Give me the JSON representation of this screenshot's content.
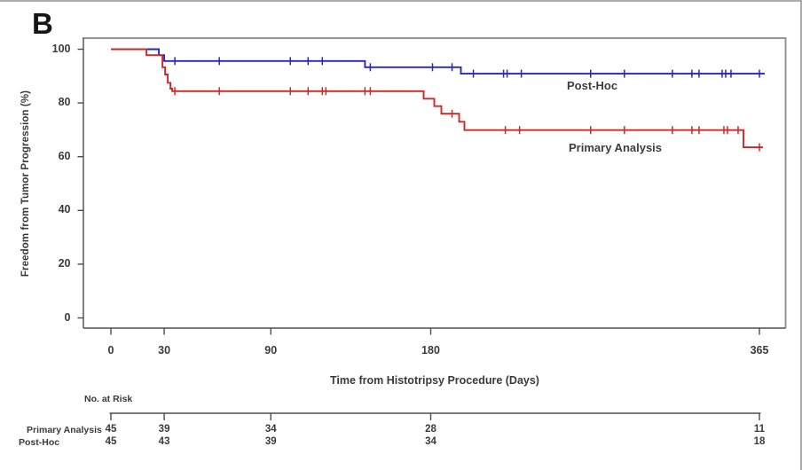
{
  "panel_label": "B",
  "colors": {
    "post_hoc_blue": "#2525cb",
    "primary_red": "#d22724",
    "axis_dark": "#4d4d4d",
    "box_gray": "#949494",
    "text_dark": "#3a3a3a"
  },
  "chart_data": {
    "type": "line",
    "subtype": "kaplan-meier-step",
    "title": "",
    "xlabel": "Time from Histotripsy Procedure (Days)",
    "ylabel": "Freedom from Tumor Progression (%)",
    "xlim": [
      0,
      365
    ],
    "ylim": [
      0,
      100
    ],
    "x_ticks": [
      0,
      30,
      90,
      180,
      365
    ],
    "y_ticks": [
      100,
      80,
      60,
      40,
      20,
      0
    ],
    "grid": false,
    "legend_position": "on-curve",
    "series": [
      {
        "name": "Post-Hoc",
        "color": "#2525cb",
        "steps": [
          [
            0,
            100
          ],
          [
            27,
            100
          ],
          [
            27,
            97.8
          ],
          [
            30,
            97.8
          ],
          [
            30,
            95.6
          ],
          [
            143,
            95.6
          ],
          [
            143,
            93.3
          ],
          [
            197,
            93.3
          ],
          [
            197,
            90.9
          ],
          [
            368,
            90.9
          ]
        ],
        "censor_days": [
          36,
          61,
          101,
          111,
          119,
          146,
          181,
          192,
          204,
          221,
          223,
          231,
          270,
          289,
          316,
          327,
          331,
          344,
          346,
          349,
          365
        ]
      },
      {
        "name": "Primary Analysis",
        "color": "#d22724",
        "steps": [
          [
            0,
            100
          ],
          [
            20,
            100
          ],
          [
            20,
            97.8
          ],
          [
            29,
            97.8
          ],
          [
            29,
            93.3
          ],
          [
            30.5,
            93.3
          ],
          [
            30.5,
            90.6
          ],
          [
            32,
            90.6
          ],
          [
            32,
            87.5
          ],
          [
            33.5,
            87.5
          ],
          [
            33.5,
            85.3
          ],
          [
            34.5,
            85.3
          ],
          [
            34.5,
            84.4
          ],
          [
            176,
            84.4
          ],
          [
            176,
            81.6
          ],
          [
            182,
            81.6
          ],
          [
            182,
            78.8
          ],
          [
            186,
            78.8
          ],
          [
            186,
            76.0
          ],
          [
            196,
            76.0
          ],
          [
            196,
            73.0
          ],
          [
            199,
            73.0
          ],
          [
            199,
            69.9
          ],
          [
            356,
            69.9
          ],
          [
            356,
            63.5
          ],
          [
            367,
            63.5
          ]
        ],
        "censor_days": [
          36,
          61,
          101,
          111,
          119,
          121,
          143,
          146,
          192,
          222,
          230,
          270,
          289,
          316,
          327,
          331,
          345,
          347,
          353,
          365
        ]
      }
    ]
  },
  "risk_table": {
    "heading": "No. at Risk",
    "time_points": [
      0,
      30,
      90,
      180,
      365
    ],
    "rows": [
      {
        "label": "Primary Analysis",
        "values": [
          "45",
          "39",
          "34",
          "28",
          "11"
        ]
      },
      {
        "label": "Post-Hoc",
        "values": [
          "45",
          "43",
          "39",
          "34",
          "18"
        ]
      }
    ]
  }
}
